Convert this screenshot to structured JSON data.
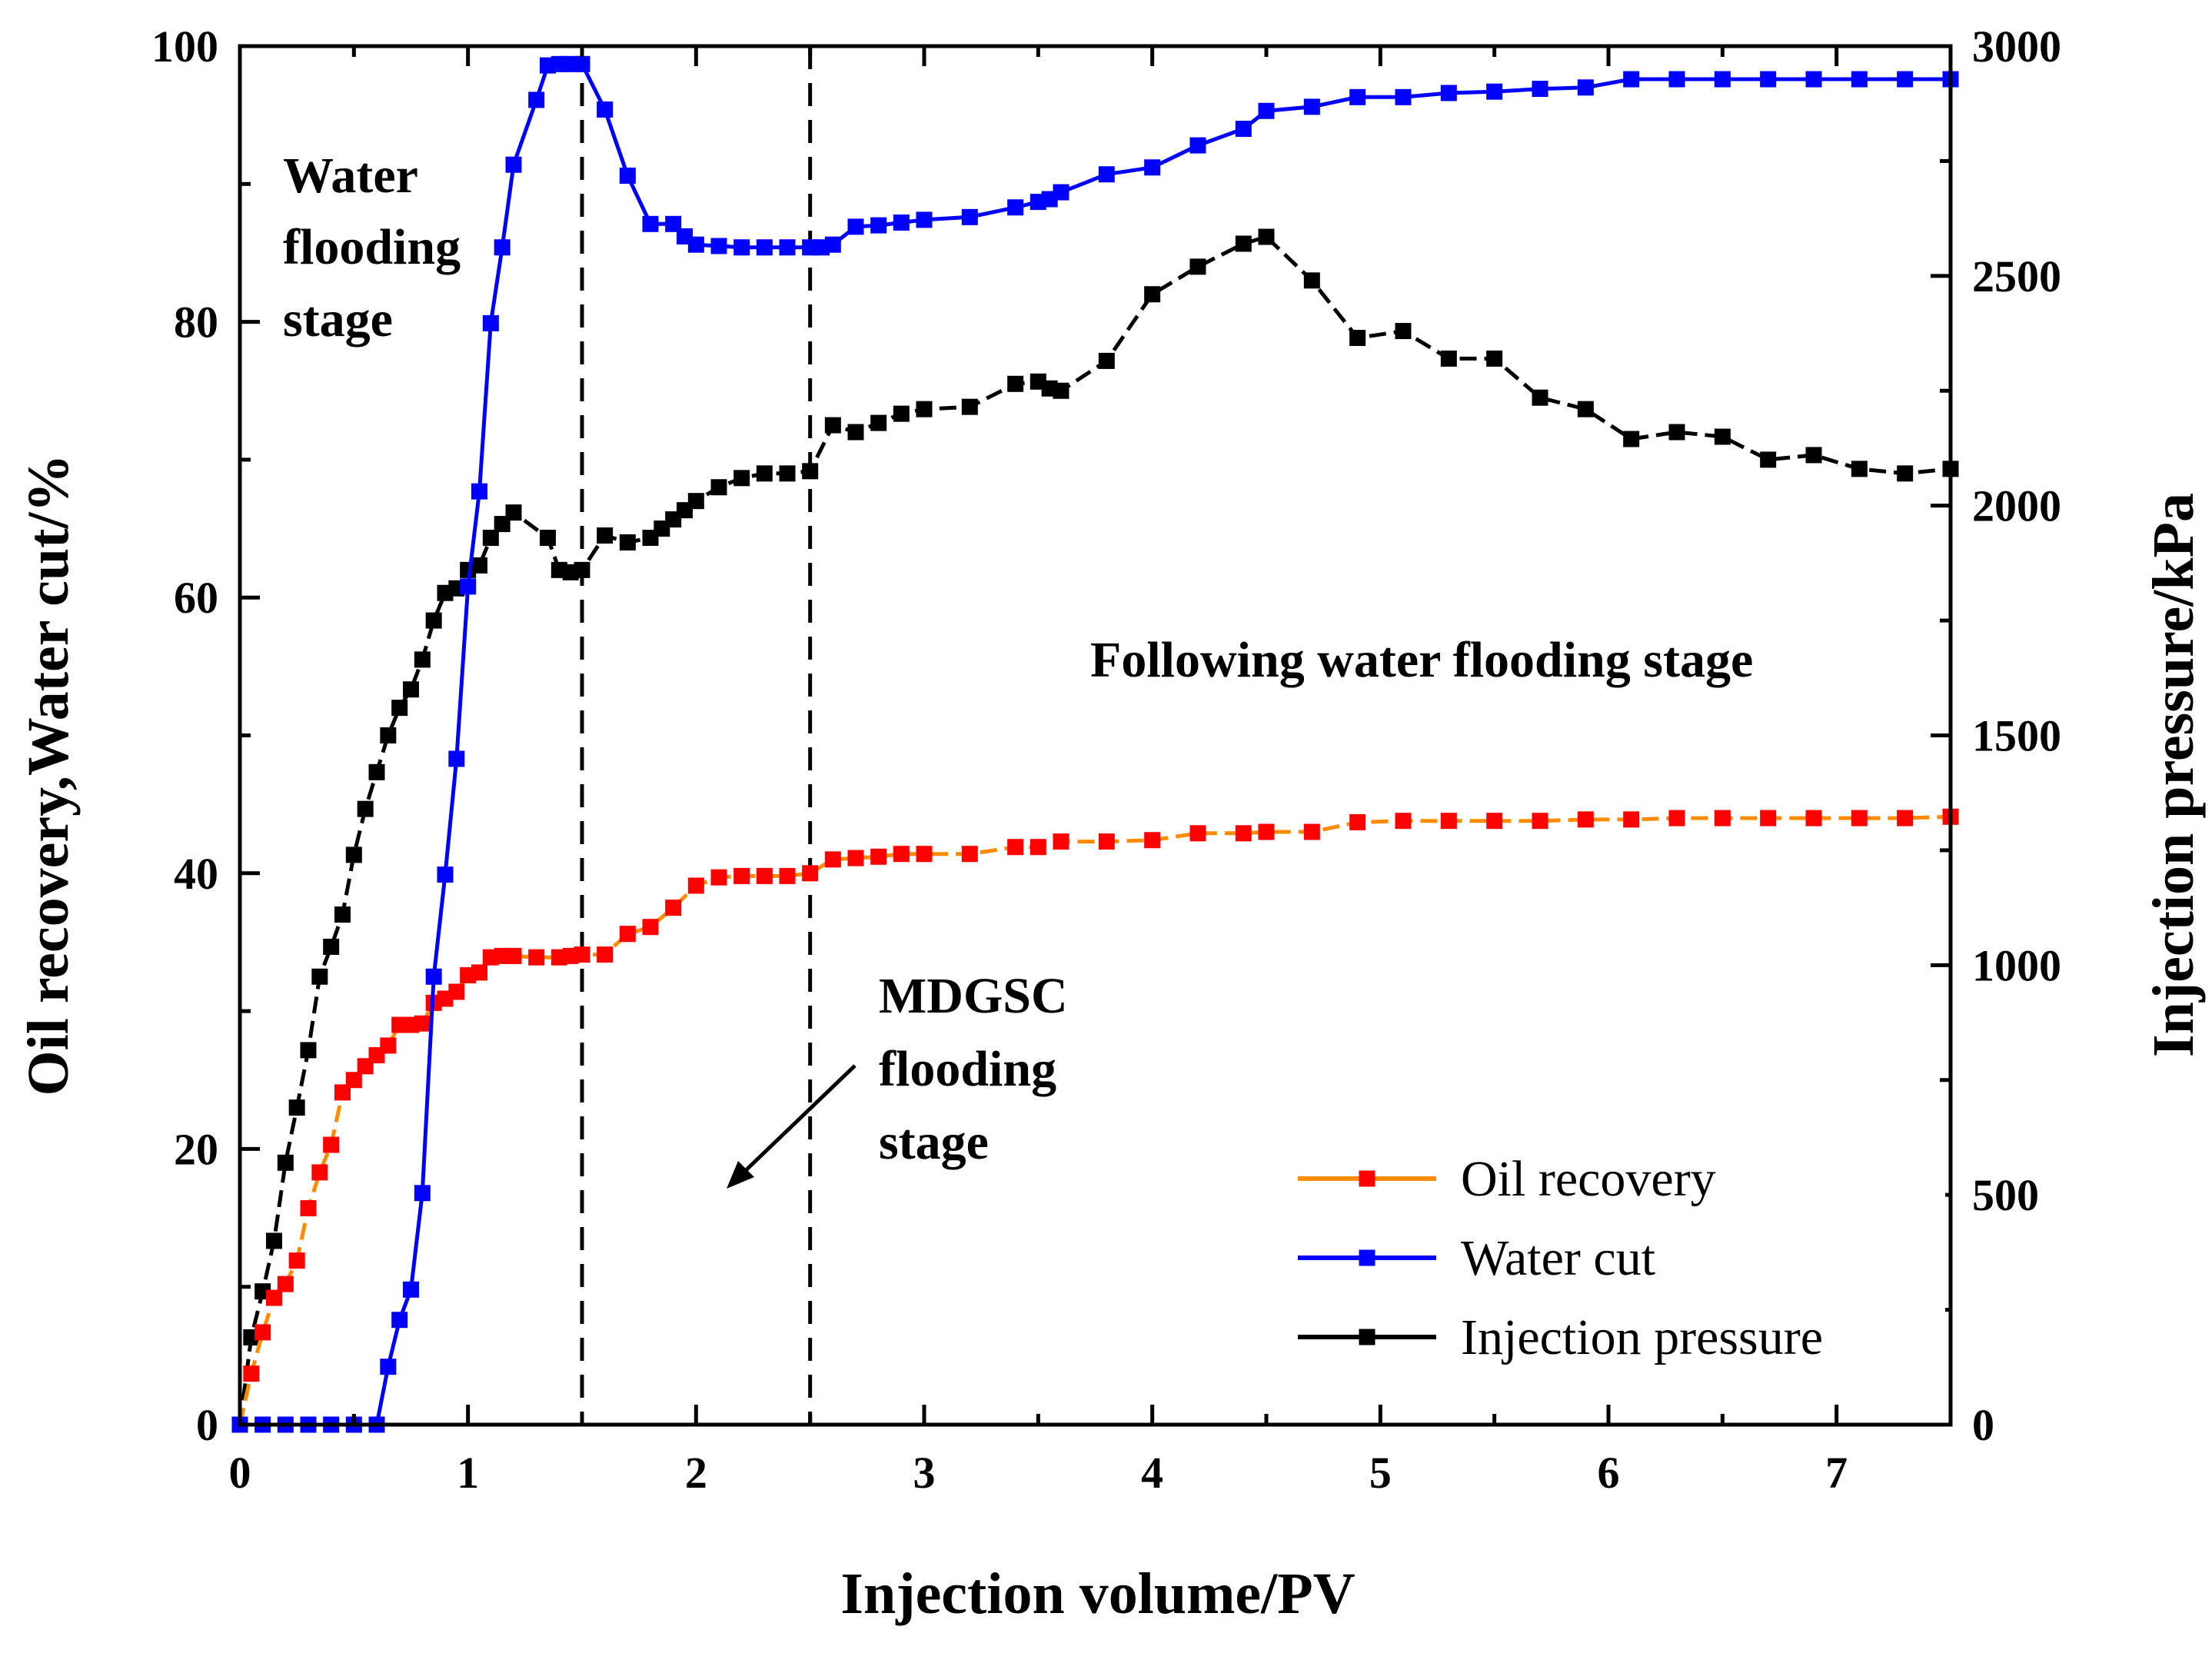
{
  "chart_data": {
    "type": "line",
    "xlabel": "Injection volume/PV",
    "ylabel_left": "Oil recovery,Water cut/%",
    "ylabel_right": "Injection pressure/kPa",
    "xlim": [
      0,
      7.5
    ],
    "ylim_left": [
      0,
      100
    ],
    "ylim_right": [
      0,
      3000
    ],
    "xticks": [
      0,
      1,
      2,
      3,
      4,
      5,
      6,
      7
    ],
    "yticks_left": [
      0,
      20,
      40,
      60,
      80,
      100
    ],
    "yticks_right": [
      0,
      500,
      1000,
      1500,
      2000,
      2500,
      3000
    ],
    "grid": false,
    "legend_position": "bottom-right",
    "stage_dividers_x": [
      1.5,
      2.5
    ],
    "annotations": {
      "water_flooding": [
        "Water",
        "flooding",
        "stage"
      ],
      "following": "Following water flooding stage",
      "mdgsc": [
        "MDGSC",
        "flooding",
        "stage"
      ]
    },
    "series": [
      {
        "name": "Oil recovery",
        "axis": "left",
        "line_color": "#ff8c00",
        "marker_color": "#ff0000",
        "x": [
          0,
          0.05,
          0.1,
          0.15,
          0.2,
          0.25,
          0.3,
          0.35,
          0.4,
          0.45,
          0.5,
          0.55,
          0.6,
          0.65,
          0.7,
          0.75,
          0.8,
          0.85,
          0.9,
          0.95,
          1.0,
          1.05,
          1.1,
          1.15,
          1.2,
          1.3,
          1.4,
          1.45,
          1.5,
          1.6,
          1.7,
          1.8,
          1.9,
          2.0,
          2.1,
          2.2,
          2.3,
          2.4,
          2.5,
          2.6,
          2.7,
          2.8,
          2.9,
          3.0,
          3.2,
          3.4,
          3.5,
          3.6,
          3.8,
          4.0,
          4.2,
          4.4,
          4.5,
          4.7,
          4.9,
          5.1,
          5.3,
          5.5,
          5.7,
          5.9,
          6.1,
          6.3,
          6.5,
          6.7,
          6.9,
          7.1,
          7.3,
          7.5
        ],
        "values": [
          0,
          3.7,
          6.7,
          9.2,
          10.2,
          11.9,
          15.7,
          18.3,
          20.3,
          24.1,
          25.0,
          26.0,
          26.8,
          27.5,
          29.0,
          29.0,
          29.1,
          30.6,
          30.9,
          31.4,
          32.6,
          32.8,
          33.9,
          34.0,
          34.0,
          33.9,
          33.9,
          34.0,
          34.1,
          34.1,
          35.6,
          36.1,
          37.5,
          39.1,
          39.7,
          39.8,
          39.8,
          39.8,
          40.0,
          41.0,
          41.1,
          41.2,
          41.4,
          41.4,
          41.4,
          41.9,
          41.9,
          42.3,
          42.3,
          42.4,
          42.9,
          42.9,
          43.0,
          43.0,
          43.7,
          43.8,
          43.8,
          43.8,
          43.8,
          43.9,
          43.9,
          44.0,
          44.0,
          44.0,
          44.0,
          44.0,
          44.0,
          44.1
        ]
      },
      {
        "name": "Water cut",
        "axis": "left",
        "line_color": "#0000ff",
        "marker_color": "#0000ff",
        "x": [
          0,
          0.1,
          0.2,
          0.3,
          0.4,
          0.5,
          0.6,
          0.65,
          0.7,
          0.75,
          0.8,
          0.85,
          0.9,
          0.95,
          1.0,
          1.05,
          1.1,
          1.15,
          1.2,
          1.3,
          1.35,
          1.4,
          1.45,
          1.5,
          1.6,
          1.7,
          1.8,
          1.9,
          1.95,
          2.0,
          2.1,
          2.2,
          2.3,
          2.4,
          2.5,
          2.55,
          2.6,
          2.7,
          2.8,
          2.9,
          3.0,
          3.2,
          3.4,
          3.5,
          3.55,
          3.6,
          3.8,
          4.0,
          4.2,
          4.4,
          4.5,
          4.7,
          4.9,
          5.1,
          5.3,
          5.5,
          5.7,
          5.9,
          6.1,
          6.3,
          6.5,
          6.7,
          6.9,
          7.1,
          7.3,
          7.5
        ],
        "values": [
          0,
          0,
          0,
          0,
          0,
          0,
          0,
          4.2,
          7.6,
          9.8,
          16.8,
          32.5,
          39.9,
          48.3,
          60.8,
          67.7,
          79.9,
          85.4,
          91.4,
          96.1,
          98.6,
          98.7,
          98.7,
          98.7,
          95.4,
          90.6,
          87.1,
          87.1,
          86.2,
          85.6,
          85.5,
          85.4,
          85.4,
          85.4,
          85.4,
          85.4,
          85.6,
          86.9,
          87.0,
          87.2,
          87.4,
          87.6,
          88.3,
          88.7,
          88.9,
          89.4,
          90.7,
          91.2,
          92.8,
          94.0,
          95.3,
          95.6,
          96.3,
          96.3,
          96.6,
          96.7,
          96.9,
          97.0,
          97.6,
          97.6,
          97.6,
          97.6,
          97.6,
          97.6,
          97.6,
          97.6
        ]
      },
      {
        "name": "Injection pressure",
        "axis": "right",
        "line_color": "#000000",
        "marker_color": "#000000",
        "x": [
          0,
          0.05,
          0.1,
          0.15,
          0.2,
          0.25,
          0.3,
          0.35,
          0.4,
          0.45,
          0.5,
          0.55,
          0.6,
          0.65,
          0.7,
          0.75,
          0.8,
          0.85,
          0.9,
          0.95,
          1.0,
          1.05,
          1.1,
          1.15,
          1.2,
          1.35,
          1.4,
          1.45,
          1.5,
          1.6,
          1.7,
          1.8,
          1.85,
          1.9,
          1.95,
          2.0,
          2.1,
          2.2,
          2.3,
          2.4,
          2.5,
          2.6,
          2.7,
          2.8,
          2.9,
          3.0,
          3.2,
          3.4,
          3.5,
          3.55,
          3.6,
          3.8,
          4.0,
          4.2,
          4.4,
          4.5,
          4.7,
          4.9,
          5.1,
          5.3,
          5.5,
          5.7,
          5.9,
          6.1,
          6.3,
          6.5,
          6.7,
          6.9,
          7.1,
          7.3,
          7.5
        ],
        "values": [
          0,
          190,
          290,
          400,
          570,
          690,
          815,
          975,
          1040,
          1110,
          1240,
          1340,
          1420,
          1500,
          1560,
          1600,
          1665,
          1750,
          1810,
          1820,
          1860,
          1870,
          1930,
          1960,
          1985,
          1930,
          1860,
          1855,
          1860,
          1935,
          1920,
          1930,
          1950,
          1970,
          1990,
          2010,
          2040,
          2060,
          2070,
          2070,
          2075,
          2175,
          2160,
          2180,
          2200,
          2210,
          2215,
          2265,
          2270,
          2255,
          2250,
          2315,
          2460,
          2520,
          2570,
          2585,
          2490,
          2365,
          2380,
          2320,
          2320,
          2235,
          2210,
          2145,
          2160,
          2150,
          2100,
          2110,
          2080,
          2070,
          2080
        ]
      }
    ]
  }
}
